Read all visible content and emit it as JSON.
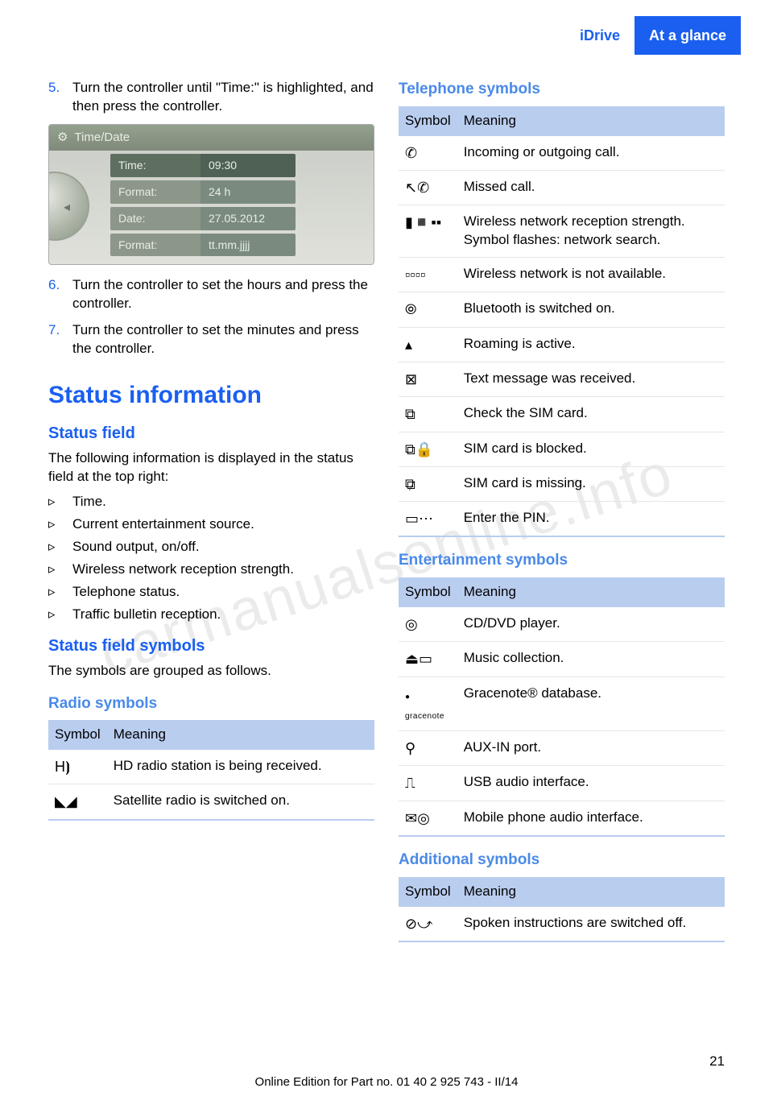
{
  "header": {
    "section": "iDrive",
    "chapter": "At a glance"
  },
  "watermark": "carmanualsonline.info",
  "steps": {
    "s5": {
      "n": "5.",
      "t": "Turn the controller until \"Time:\" is high­lighted, and then press the controller."
    },
    "s6": {
      "n": "6.",
      "t": "Turn the controller to set the hours and press the controller."
    },
    "s7": {
      "n": "7.",
      "t": "Turn the controller to set the minutes and press the controller."
    }
  },
  "idrive": {
    "title": "Time/Date",
    "rows": [
      {
        "label": "Time:",
        "value": "09:30",
        "hl": true
      },
      {
        "label": "Format:",
        "value": "24 h",
        "hl": false
      },
      {
        "label": "Date:",
        "value": "27.05.2012",
        "hl": false
      },
      {
        "label": "Format:",
        "value": "tt.mm.jjjj",
        "hl": false
      }
    ]
  },
  "h_status_info": "Status information",
  "h_status_field": "Status field",
  "p_status_field": "The following information is displayed in the status field at the top right:",
  "status_bullets": [
    "Time.",
    "Current entertainment source.",
    "Sound output, on/off.",
    "Wireless network reception strength.",
    "Telephone status.",
    "Traffic bulletin reception."
  ],
  "h_status_symbols": "Status field symbols",
  "p_status_symbols": "The symbols are grouped as follows.",
  "table_headers": {
    "symbol": "Symbol",
    "meaning": "Meaning"
  },
  "h_radio": "Radio symbols",
  "radio_rows": [
    {
      "icon": "H⦘",
      "meaning": "HD radio station is being received."
    },
    {
      "icon": "◣◢",
      "meaning": "Satellite radio is switched on."
    }
  ],
  "h_telephone": "Telephone symbols",
  "telephone_rows": [
    {
      "icon": "✆",
      "meaning": "Incoming or outgoing call."
    },
    {
      "icon": "↖✆",
      "meaning": "Missed call."
    },
    {
      "icon": "▮◾▪▪",
      "meaning": "Wireless network reception strength.\nSymbol flashes: network search."
    },
    {
      "icon": "▫▫▫▫",
      "meaning": "Wireless network is not available."
    },
    {
      "icon": "⦾",
      "meaning": "Bluetooth is switched on."
    },
    {
      "icon": "▴",
      "meaning": "Roaming is active."
    },
    {
      "icon": "⊠",
      "meaning": "Text message was received."
    },
    {
      "icon": "⧉",
      "meaning": "Check the SIM card."
    },
    {
      "icon": "⧉🔒",
      "meaning": "SIM card is blocked."
    },
    {
      "icon": "⧉̷",
      "meaning": "SIM card is missing."
    },
    {
      "icon": "▭⋯",
      "meaning": "Enter the PIN."
    }
  ],
  "h_entertainment": "Entertainment symbols",
  "entertainment_rows": [
    {
      "icon": "◎",
      "meaning": "CD/DVD player."
    },
    {
      "icon": "⏏▭",
      "meaning": "Music collection."
    },
    {
      "icon": "gracenote",
      "meaning": "Gracenote® database."
    },
    {
      "icon": "⚲",
      "meaning": "AUX-IN port."
    },
    {
      "icon": "⎍",
      "meaning": "USB audio interface."
    },
    {
      "icon": "✉◎",
      "meaning": "Mobile phone audio interface."
    }
  ],
  "h_additional": "Additional symbols",
  "additional_rows": [
    {
      "icon": "⊘⤻",
      "meaning": "Spoken instructions are switched off."
    }
  ],
  "page_number": "21",
  "footer": "Online Edition for Part no. 01 40 2 925 743 - II/14"
}
